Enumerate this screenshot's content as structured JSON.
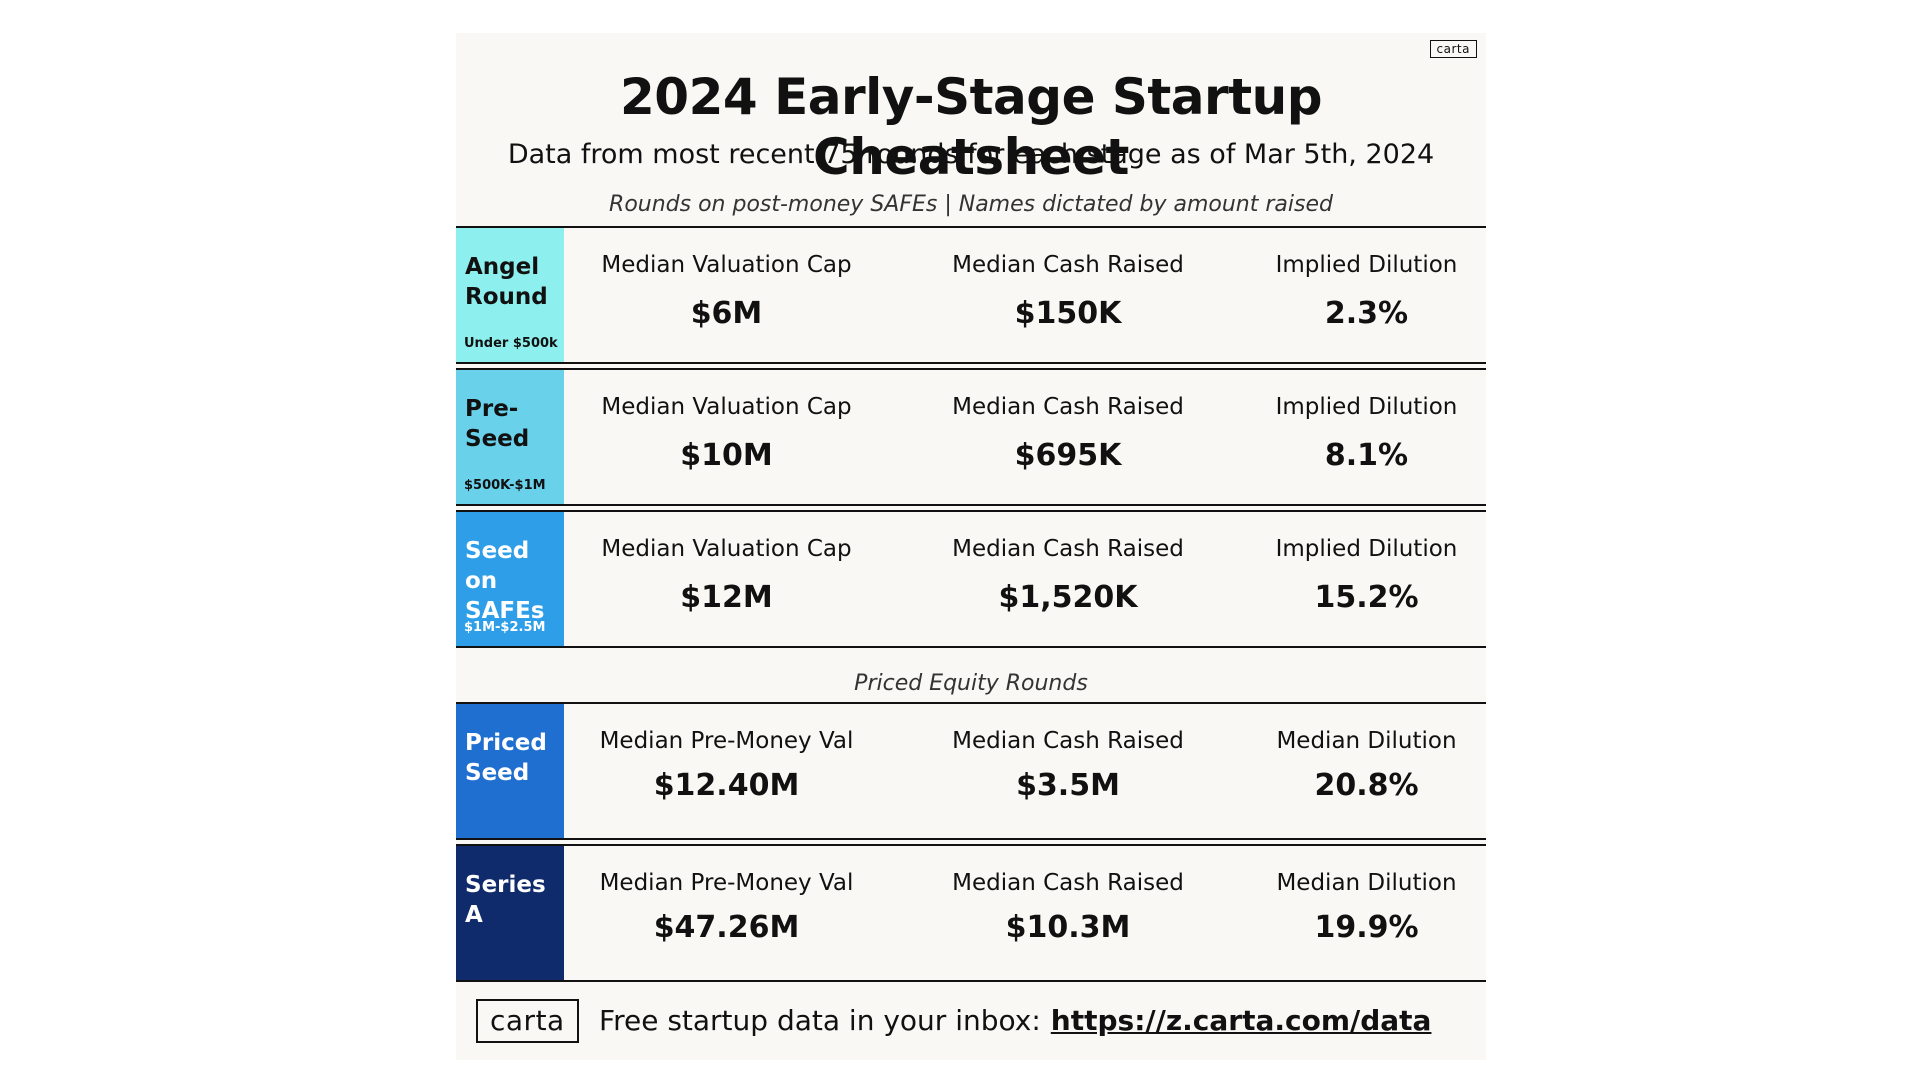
{
  "header": {
    "corner_logo": "carta",
    "title": "2024 Early-Stage Startup Cheatsheet",
    "subtitle": "Data from most recent 75 rounds for each stage as of Mar 5th, 2024",
    "safe_note": "Rounds on post-money SAFEs | Names dictated by amount raised"
  },
  "safe_rounds": [
    {
      "name": "Angel\nRound",
      "range": "Under $500k",
      "color": "#8ef0ee",
      "text_color": "#111111",
      "metrics": [
        {
          "label": "Median Valuation Cap",
          "value": "$6M"
        },
        {
          "label": "Median Cash Raised",
          "value": "$150K"
        },
        {
          "label": "Implied Dilution",
          "value": "2.3%"
        }
      ]
    },
    {
      "name": "Pre-\nSeed",
      "range": "$500K-$1M",
      "color": "#6ad1ea",
      "text_color": "#111111",
      "metrics": [
        {
          "label": "Median Valuation Cap",
          "value": "$10M"
        },
        {
          "label": "Median Cash Raised",
          "value": "$695K"
        },
        {
          "label": "Implied Dilution",
          "value": "8.1%"
        }
      ]
    },
    {
      "name": "Seed\non\nSAFEs",
      "range": "$1M-$2.5M",
      "color": "#2e9ee9",
      "text_color": "#ffffff",
      "metrics": [
        {
          "label": "Median Valuation Cap",
          "value": "$12M"
        },
        {
          "label": "Median Cash Raised",
          "value": "$1,520K"
        },
        {
          "label": "Implied Dilution",
          "value": "15.2%"
        }
      ]
    }
  ],
  "priced_note": "Priced Equity Rounds",
  "priced_rounds": [
    {
      "name": "Priced\nSeed",
      "color": "#1f6fd0",
      "text_color": "#ffffff",
      "metrics": [
        {
          "label": "Median Pre-Money Val",
          "value": "$12.40M"
        },
        {
          "label": "Median Cash Raised",
          "value": "$3.5M"
        },
        {
          "label": "Median Dilution",
          "value": "20.8%"
        }
      ]
    },
    {
      "name": "Series\nA",
      "color": "#0f2b6b",
      "text_color": "#ffffff",
      "metrics": [
        {
          "label": "Median Pre-Money Val",
          "value": "$47.26M"
        },
        {
          "label": "Median Cash Raised",
          "value": "$10.3M"
        },
        {
          "label": "Median Dilution",
          "value": "19.9%"
        }
      ]
    }
  ],
  "footer": {
    "logo": "carta",
    "text": "Free startup data in your inbox:",
    "link": "https://z.carta.com/data"
  }
}
